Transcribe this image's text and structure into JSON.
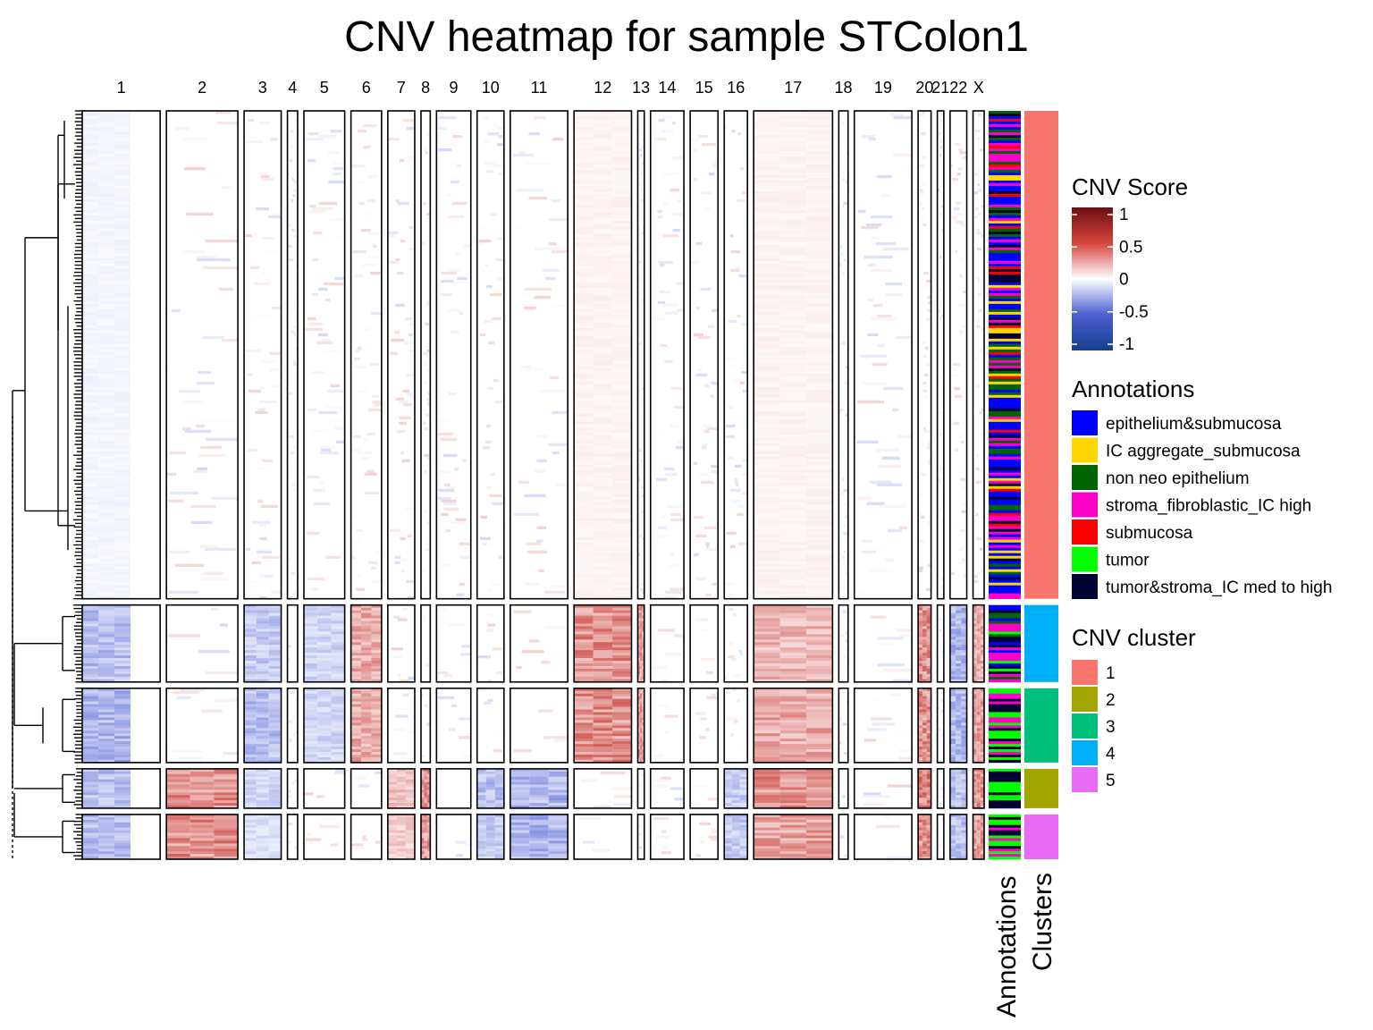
{
  "chart_data": {
    "type": "heatmap",
    "title": "CNV heatmap for sample STColon1",
    "chromosomes": [
      "1",
      "2",
      "3",
      "4",
      "5",
      "6",
      "7",
      "8",
      "9",
      "10",
      "11",
      "12",
      "13",
      "14",
      "15",
      "16",
      "17",
      "18",
      "19",
      "20",
      "21",
      "22",
      "X"
    ],
    "chromosome_relative_width": [
      84,
      77,
      40,
      11,
      44,
      33,
      29,
      10,
      37,
      29,
      62,
      62,
      7,
      36,
      30,
      25,
      85,
      10,
      62,
      14,
      7,
      18,
      12
    ],
    "row_annotation_titles": [
      "Annotations",
      "Clusters"
    ],
    "cnv_clusters": [
      {
        "name": "1",
        "relative_height": 545
      },
      {
        "name": "4",
        "relative_height": 86
      },
      {
        "name": "3",
        "relative_height": 83
      },
      {
        "name": "2",
        "relative_height": 44
      },
      {
        "name": "5",
        "relative_height": 50
      }
    ],
    "cnv_profiles": {
      "1": {
        "1": -0.05,
        "12": 0.05,
        "17": 0.05
      },
      "4": {
        "1": -0.3,
        "3": -0.25,
        "5": -0.2,
        "6": 0.35,
        "12": 0.45,
        "13": 0.4,
        "17": 0.3,
        "20": 0.45,
        "22": -0.35,
        "X": 0.35
      },
      "3": {
        "1": -0.35,
        "3": -0.3,
        "5": -0.2,
        "6": 0.35,
        "12": 0.45,
        "13": 0.4,
        "17": 0.35,
        "20": 0.45,
        "22": -0.35,
        "X": 0.4
      },
      "2": {
        "1": -0.3,
        "2": 0.45,
        "3": -0.2,
        "7": 0.25,
        "8": 0.45,
        "10": -0.3,
        "11": -0.35,
        "16": -0.25,
        "17": 0.45,
        "20": 0.5,
        "22": -0.3,
        "X": 0.45
      },
      "5": {
        "1": -0.3,
        "2": 0.45,
        "3": -0.15,
        "7": 0.2,
        "8": 0.4,
        "10": -0.25,
        "11": -0.35,
        "16": -0.25,
        "17": 0.4,
        "20": 0.45,
        "22": -0.3,
        "X": 0.4
      }
    },
    "legend_cnv_score": {
      "title": "CNV Score",
      "ticks": [
        "1",
        "0.5",
        "0",
        "-0.5",
        "-1"
      ],
      "color_stops": [
        "#6b0f0f",
        "#d6453f",
        "#ffffff",
        "#4b5fd0",
        "#163f8c"
      ]
    },
    "legend_annotations": {
      "title": "Annotations",
      "items": [
        {
          "label": "epithelium&submucosa",
          "color": "#0000ff"
        },
        {
          "label": "IC aggregate_submucosa",
          "color": "#ffd700"
        },
        {
          "label": "non neo epithelium",
          "color": "#006400"
        },
        {
          "label": "stroma_fibroblastic_IC high",
          "color": "#ff00c8"
        },
        {
          "label": "submucosa",
          "color": "#ff0000"
        },
        {
          "label": "tumor",
          "color": "#00ff00"
        },
        {
          "label": "tumor&stroma_IC med to high",
          "color": "#000033"
        }
      ]
    },
    "legend_clusters": {
      "title": "CNV cluster",
      "items": [
        {
          "label": "1",
          "color": "#f8766d"
        },
        {
          "label": "2",
          "color": "#a3a500"
        },
        {
          "label": "3",
          "color": "#00bf7d"
        },
        {
          "label": "4",
          "color": "#00b0f6"
        },
        {
          "label": "5",
          "color": "#e76bf3"
        }
      ]
    }
  }
}
